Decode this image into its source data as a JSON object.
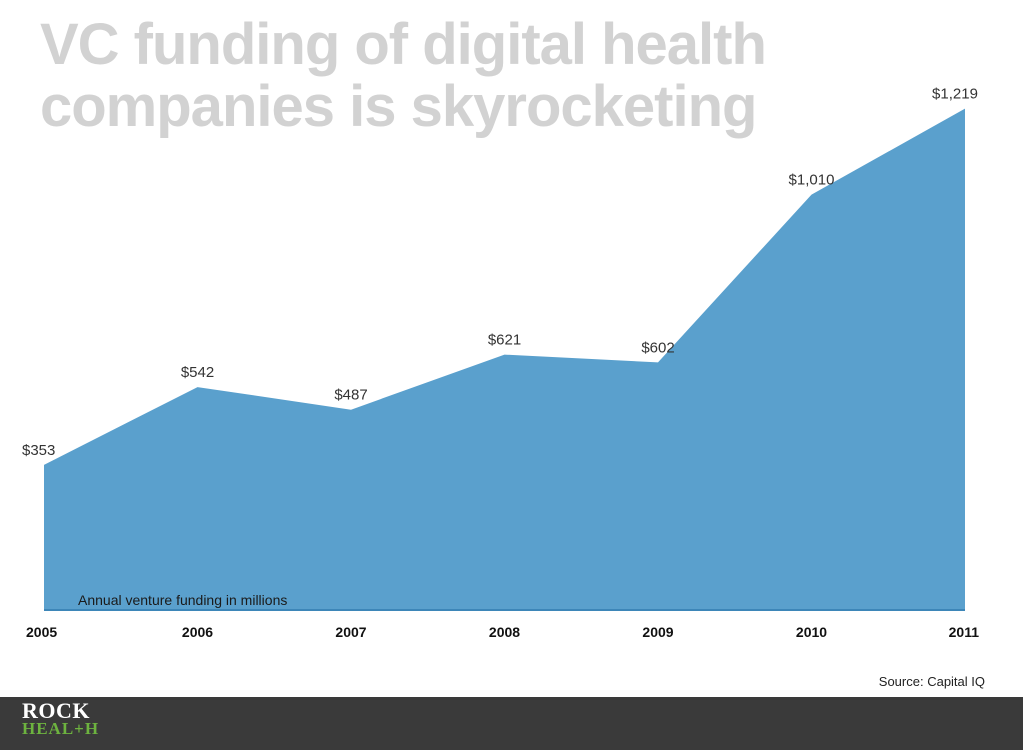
{
  "title": {
    "line1": "VC funding of digital health",
    "line2": "companies is skyrocketing"
  },
  "source": "Source: Capital IQ",
  "logo": {
    "top": "ROCK",
    "bottom": "HEAL+H"
  },
  "colors": {
    "area": "#5aa0cd",
    "title": "#d2d2d2",
    "footer": "#3a3a3a",
    "logo_accent": "#6db33f"
  },
  "chart_data": {
    "type": "area",
    "title": "VC funding of digital health companies is skyrocketing",
    "categories": [
      "2005",
      "2006",
      "2007",
      "2008",
      "2009",
      "2010",
      "2011"
    ],
    "values": [
      353,
      542,
      487,
      621,
      602,
      1010,
      1219
    ],
    "data_labels": [
      "$353",
      "$542",
      "$487",
      "$621",
      "$602",
      "$1,010",
      "$1,219"
    ],
    "annotation": "Annual venture funding in millions",
    "xlabel": "",
    "ylabel": "",
    "ylim": [
      0,
      1240
    ],
    "grid": false,
    "legend": "none"
  }
}
